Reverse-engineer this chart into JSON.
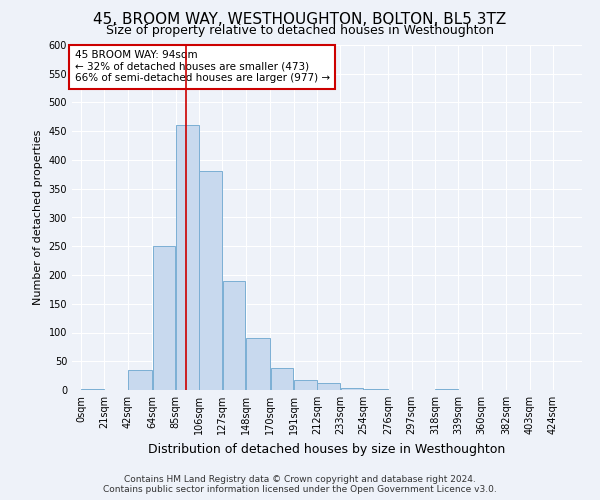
{
  "title": "45, BROOM WAY, WESTHOUGHTON, BOLTON, BL5 3TZ",
  "subtitle": "Size of property relative to detached houses in Westhoughton",
  "xlabel": "Distribution of detached houses by size in Westhoughton",
  "ylabel": "Number of detached properties",
  "bar_color": "#c8d9ee",
  "bar_edge_color": "#7bafd4",
  "bin_labels": [
    "0sqm",
    "21sqm",
    "42sqm",
    "64sqm",
    "85sqm",
    "106sqm",
    "127sqm",
    "148sqm",
    "170sqm",
    "191sqm",
    "212sqm",
    "233sqm",
    "254sqm",
    "276sqm",
    "297sqm",
    "318sqm",
    "339sqm",
    "360sqm",
    "382sqm",
    "403sqm",
    "424sqm"
  ],
  "bar_heights": [
    2,
    0,
    35,
    250,
    460,
    380,
    190,
    90,
    38,
    18,
    12,
    4,
    1,
    0,
    0,
    1,
    0,
    0,
    0,
    0,
    0
  ],
  "ylim": [
    0,
    600
  ],
  "yticks": [
    0,
    50,
    100,
    150,
    200,
    250,
    300,
    350,
    400,
    450,
    500,
    550,
    600
  ],
  "property_label": "45 BROOM WAY: 94sqm",
  "annotation_line1": "← 32% of detached houses are smaller (473)",
  "annotation_line2": "66% of semi-detached houses are larger (977) →",
  "vline_x": 94,
  "background_color": "#eef2f9",
  "grid_color": "#ffffff",
  "footer1": "Contains HM Land Registry data © Crown copyright and database right 2024.",
  "footer2": "Contains public sector information licensed under the Open Government Licence v3.0.",
  "annotation_box_color": "#ffffff",
  "annotation_box_edge": "#cc0000",
  "title_fontsize": 11,
  "subtitle_fontsize": 9,
  "ylabel_fontsize": 8,
  "xlabel_fontsize": 9,
  "tick_fontsize": 7,
  "footer_fontsize": 6.5
}
